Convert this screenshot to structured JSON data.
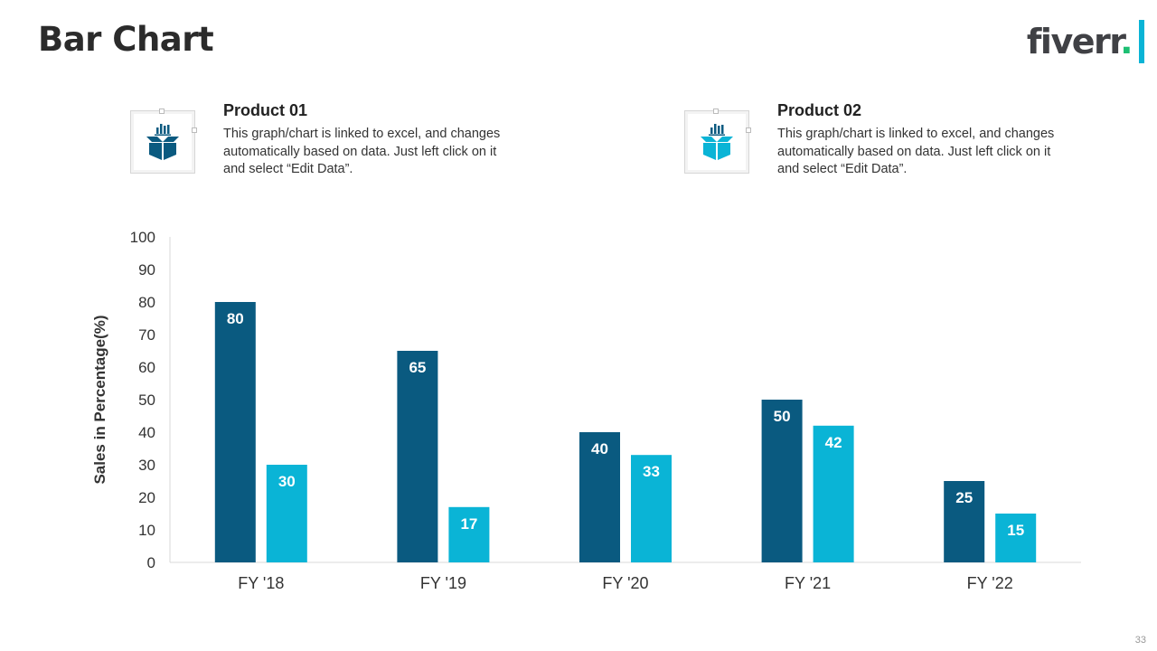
{
  "slide": {
    "title": "Bar Chart",
    "page_number": "33"
  },
  "logo": {
    "text": "fiverr",
    "dot": ".",
    "text_color": "#404145",
    "dot_color": "#1dbf73",
    "bar_color": "#0ab4d6"
  },
  "products": [
    {
      "name": "Product 01",
      "description": "This graph/chart is linked to excel, and changes automatically based on data. Just left click on it and select “Edit Data”.",
      "icon": "box-chart-icon",
      "color": "#0a5a80"
    },
    {
      "name": "Product 02",
      "description": "This graph/chart is linked to excel, and changes automatically based on data. Just left click on it and select “Edit Data”.",
      "icon": "box-chart-icon",
      "color": "#0ab4d6"
    }
  ],
  "chart_data": {
    "type": "bar",
    "title": "",
    "xlabel": "",
    "ylabel": "Sales in Percentage(%)",
    "ylim": [
      0,
      100
    ],
    "yticks": [
      0,
      10,
      20,
      30,
      40,
      50,
      60,
      70,
      80,
      90,
      100
    ],
    "categories": [
      "FY '18",
      "FY '19",
      "FY '20",
      "FY '21",
      "FY '22"
    ],
    "series": [
      {
        "name": "Product 01",
        "values": [
          80,
          65,
          40,
          50,
          25
        ],
        "color": "#0a5a80"
      },
      {
        "name": "Product 02",
        "values": [
          30,
          17,
          33,
          42,
          15
        ],
        "color": "#0ab4d6"
      }
    ],
    "grid": false,
    "data_labels": true
  }
}
